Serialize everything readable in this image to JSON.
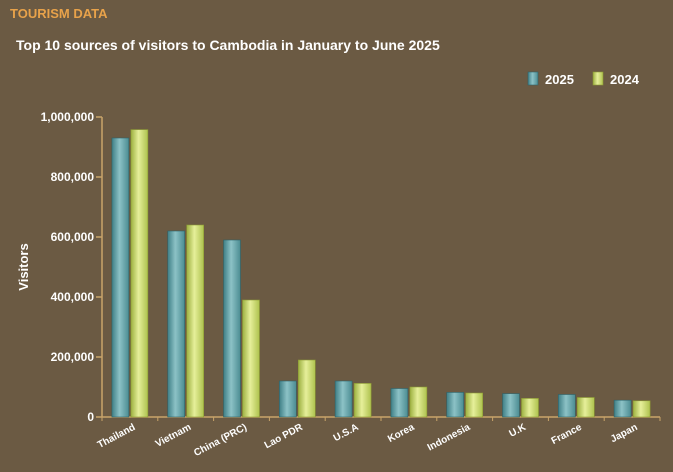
{
  "header": {
    "section_label": "TOURISM DATA",
    "title": "Top 10 sources of visitors to Cambodia in January to June 2025"
  },
  "colors": {
    "background": "#6b5a43",
    "axis": "#c9a46a",
    "section_label": "#e8a24a",
    "series_2025": "#5e9ea3",
    "series_2024": "#c3d46a"
  },
  "chart_data": {
    "type": "bar",
    "title": "Top 10 sources of visitors to Cambodia in January to June 2025",
    "xlabel": "",
    "ylabel": "Visitors",
    "ylim": [
      0,
      1000000
    ],
    "yticks": [
      0,
      200000,
      400000,
      600000,
      800000,
      1000000
    ],
    "ytick_labels": [
      "0",
      "200,000",
      "400,000",
      "600,000",
      "800,000",
      "1,000,000"
    ],
    "grid": false,
    "legend_position": "top-right",
    "categories": [
      "Thailand",
      "Vietnam",
      "China (PRC)",
      "Lao PDR",
      "U.S.A",
      "Korea",
      "Indonesia",
      "U.K",
      "France",
      "Japan"
    ],
    "series": [
      {
        "name": "2025",
        "color": "#5e9ea3",
        "values": [
          930000,
          620000,
          590000,
          120000,
          120000,
          95000,
          82000,
          78000,
          75000,
          56000
        ]
      },
      {
        "name": "2024",
        "color": "#c3d46a",
        "values": [
          958000,
          640000,
          390000,
          190000,
          112000,
          100000,
          80000,
          62000,
          65000,
          54000
        ]
      }
    ]
  }
}
